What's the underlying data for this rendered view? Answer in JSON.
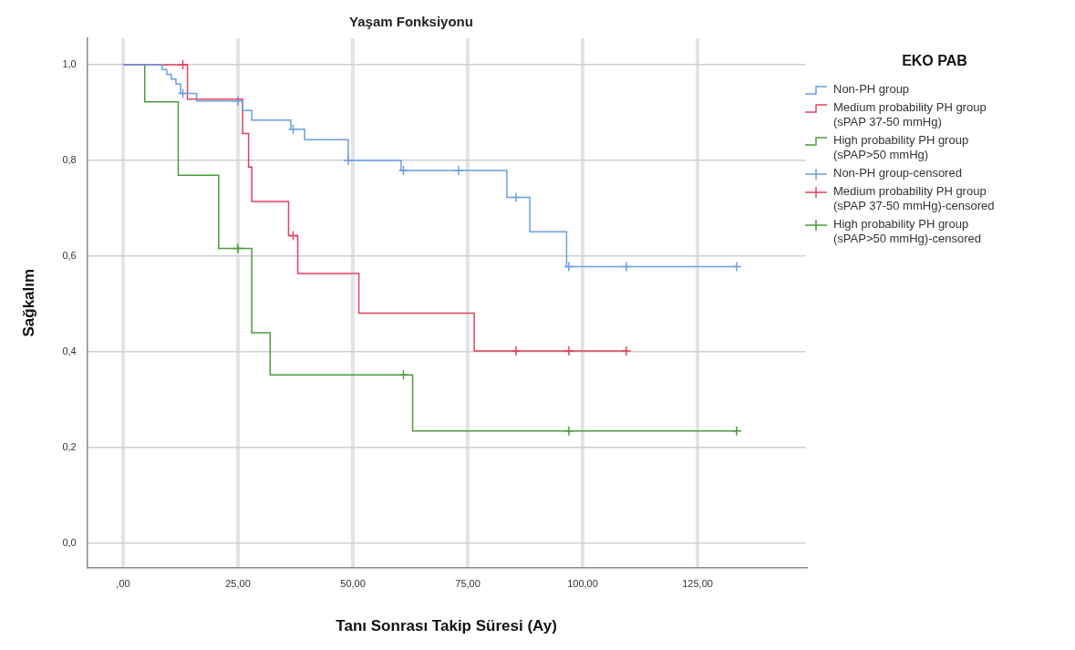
{
  "chart_data": {
    "type": "step",
    "title": "Yaşam Fonksiyonu",
    "xlabel": "Tanı Sonrası Takip Süresi (Ay)",
    "ylabel": "Sağkalım",
    "legend_title": "EKO PAB",
    "legend": "right",
    "grid": true,
    "xlim": [
      -7.8,
      148.5
    ],
    "ylim": [
      -0.05,
      1.055
    ],
    "xticks": [
      {
        "value": 0,
        "label": ",00"
      },
      {
        "value": 25,
        "label": "25,00"
      },
      {
        "value": 50,
        "label": "50,00"
      },
      {
        "value": 75,
        "label": "75,00"
      },
      {
        "value": 100,
        "label": "100,00"
      },
      {
        "value": 125,
        "label": "125,00"
      }
    ],
    "yticks": [
      {
        "value": 0,
        "label": "0,0"
      },
      {
        "value": 0.2,
        "label": "0,2"
      },
      {
        "value": 0.4,
        "label": "0,4"
      },
      {
        "value": 0.6,
        "label": "0,6"
      },
      {
        "value": 0.8,
        "label": "0,8"
      },
      {
        "value": 1,
        "label": "1,0"
      }
    ],
    "series": [
      {
        "name": "Non-PH group",
        "color": "#6a9fe0",
        "x": [
          0,
          8.5,
          9.5,
          10.5,
          11.5,
          12.5,
          16,
          26,
          28,
          36.5,
          39.5,
          49,
          60.5,
          83.5,
          88.5,
          96.5,
          133.5
        ],
        "values": [
          1,
          0.99,
          0.98,
          0.97,
          0.96,
          0.94,
          0.924,
          0.904,
          0.884,
          0.865,
          0.843,
          0.8,
          0.779,
          0.723,
          0.651,
          0.578,
          0.578
        ]
      },
      {
        "name": "Medium probability PH group (sPAP 37-50 mmHg)",
        "color": "#e2415e",
        "x": [
          0,
          14,
          26,
          27.3,
          28,
          36,
          38,
          51.3,
          76.4,
          109.5
        ],
        "values": [
          1,
          0.928,
          0.856,
          0.786,
          0.714,
          0.643,
          0.564,
          0.481,
          0.402,
          0.402
        ]
      },
      {
        "name": "High probability PH group (sPAP>50 mmHg)",
        "color": "#4c9a3e",
        "x": [
          0,
          4.7,
          12,
          20.8,
          28,
          32,
          63,
          133.5
        ],
        "values": [
          1,
          0.922,
          0.769,
          0.616,
          0.44,
          0.352,
          0.235,
          0.235
        ]
      },
      {
        "name": "Non-PH group-censored",
        "type": "scatter",
        "marker": "cross",
        "color": "#6a9fe0",
        "x": [
          13,
          25,
          37,
          49,
          61,
          73,
          85.5,
          97,
          109.5,
          133.5
        ],
        "values": [
          0.94,
          0.924,
          0.865,
          0.8,
          0.779,
          0.779,
          0.723,
          0.578,
          0.578,
          0.578
        ]
      },
      {
        "name": "Medium probability PH group (sPAP 37-50 mmHg)-censored",
        "type": "scatter",
        "marker": "cross",
        "color": "#e2415e",
        "x": [
          13,
          37,
          85.5,
          97,
          109.5
        ],
        "values": [
          1,
          0.643,
          0.402,
          0.402,
          0.402
        ]
      },
      {
        "name": "High probability PH group (sPAP>50 mmHg)-censored",
        "type": "scatter",
        "marker": "cross",
        "color": "#4c9a3e",
        "x": [
          25,
          61,
          97,
          133.5
        ],
        "values": [
          0.616,
          0.352,
          0.235,
          0.235
        ]
      }
    ]
  }
}
